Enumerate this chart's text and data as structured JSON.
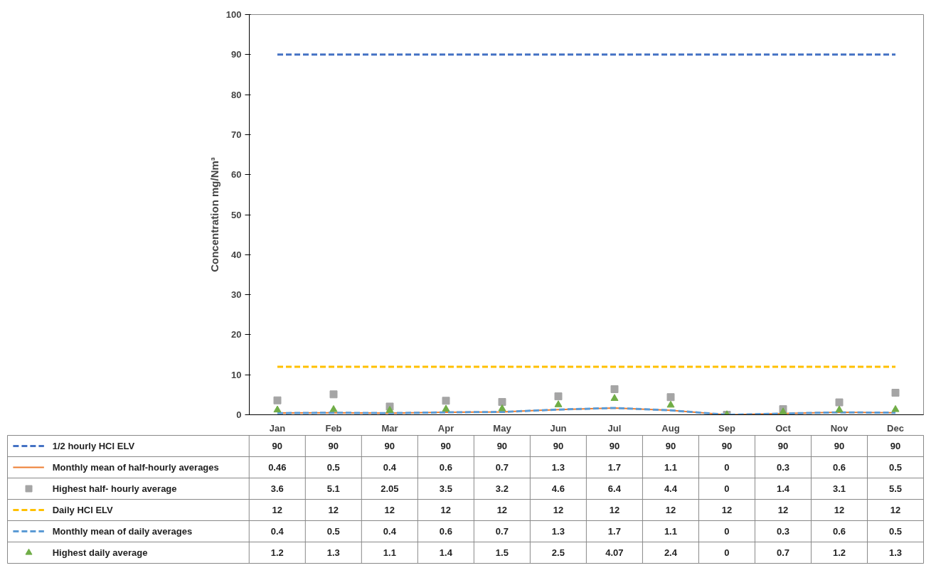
{
  "chart_data": {
    "type": "line",
    "ylabel": "Concentration mg/Nm³",
    "categories": [
      "Jan",
      "Feb",
      "Mar",
      "Apr",
      "May",
      "Jun",
      "Jul",
      "Aug",
      "Sep",
      "Oct",
      "Nov",
      "Dec"
    ],
    "ylim": [
      0,
      100
    ],
    "yticks": [
      0,
      10,
      20,
      30,
      40,
      50,
      60,
      70,
      80,
      90,
      100
    ],
    "legend": "bottom",
    "data_labels": true,
    "series": [
      {
        "name": "1/2 hourly HCl ELV",
        "color": "#4472c4",
        "line_style": "dashed",
        "marker": "none",
        "values": [
          90,
          90,
          90,
          90,
          90,
          90,
          90,
          90,
          90,
          90,
          90,
          90
        ]
      },
      {
        "name": "Monthly mean of half-hourly averages",
        "color": "#ed7d31",
        "line_style": "solid",
        "marker": "none",
        "values": [
          0.46,
          0.5,
          0.4,
          0.6,
          0.7,
          1.3,
          1.7,
          1.1,
          0,
          0.3,
          0.6,
          0.5
        ]
      },
      {
        "name": "Highest half- hourly average",
        "type": "scatter",
        "color": "#a5a5a5",
        "marker": "square",
        "values": [
          3.6,
          5.1,
          2.05,
          3.5,
          3.2,
          4.6,
          6.4,
          4.4,
          0,
          1.4,
          3.1,
          5.5
        ]
      },
      {
        "name": "Daily HCl ELV",
        "color": "#ffc000",
        "line_style": "dashed",
        "marker": "none",
        "values": [
          12,
          12,
          12,
          12,
          12,
          12,
          12,
          12,
          12,
          12,
          12,
          12
        ]
      },
      {
        "name": "Monthly mean of  daily averages",
        "color": "#5b9bd5",
        "line_style": "dashed",
        "marker": "none",
        "values": [
          0.4,
          0.5,
          0.4,
          0.6,
          0.7,
          1.3,
          1.7,
          1.1,
          0,
          0.3,
          0.6,
          0.5
        ]
      },
      {
        "name": "Highest daily average",
        "type": "scatter",
        "color": "#70ad47",
        "marker": "triangle",
        "values": [
          1.2,
          1.3,
          1.1,
          1.4,
          1.5,
          2.5,
          4.07,
          2.4,
          0,
          0.7,
          1.2,
          1.3
        ]
      }
    ]
  }
}
